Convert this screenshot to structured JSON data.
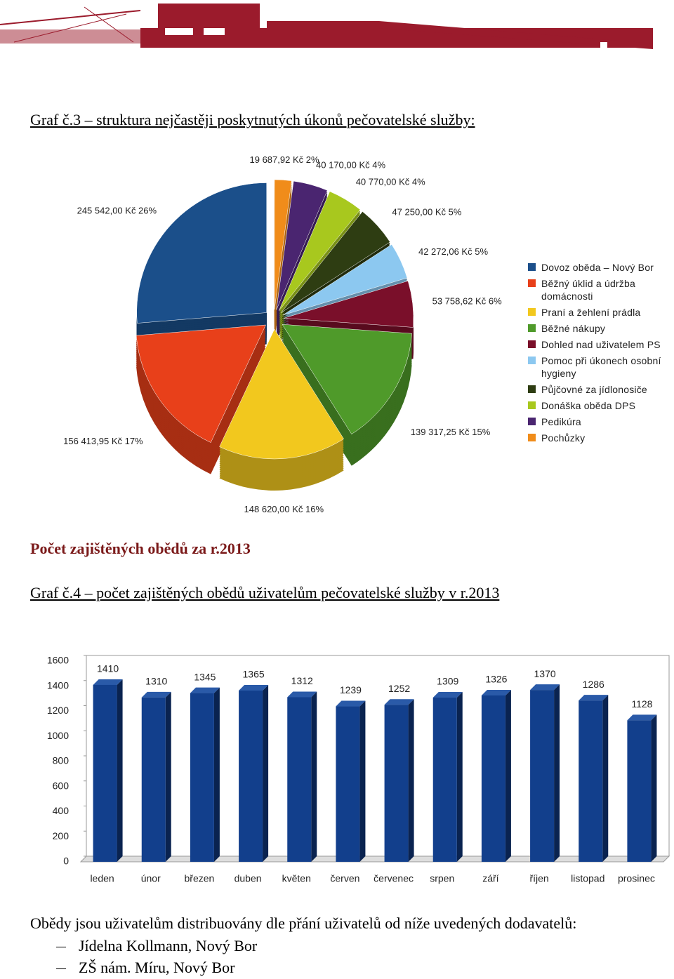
{
  "document": {
    "graph3_caption": "Graf č.3 – struktura nejčastěji poskytnutých  úkonů pečovatelské služby:",
    "section_heading": "Počet zajištěných obědů za r.2013",
    "graph4_caption": "Graf č.4 – počet zajištěných obědů uživatelům pečovatelské služby v r.2013",
    "paragraph": "Obědy jsou uživatelům distribuovány dle  přání uživatelů od níže uvedených dodavatelů:",
    "list": [
      "Jídelna Kollmann, Nový Bor",
      "ZŠ nám. Míru, Nový Bor"
    ]
  },
  "chart_data": [
    {
      "type": "pie",
      "categories": [
        "Dovoz oběda – Nový Bor",
        "Běžný úklid a údržba domácnosti",
        "Praní a žehlení prádla",
        "Běžné nákupy",
        "Dohled nad uživatelem PS",
        "Pomoc při úkonech osobní hygieny",
        "Půjčovné za jídlonosiče",
        "Donáška oběda DPS",
        "Pedikúra",
        "Pochůzky"
      ],
      "values": [
        245542.0,
        156413.95,
        148620.0,
        139317.25,
        53758.62,
        42272.06,
        47250.0,
        40770.0,
        40170.0,
        19687.92
      ],
      "value_labels": [
        "245 542,00 Kč 26%",
        "156 413,95 Kč 17%",
        "148 620,00 Kč 16%",
        "139 317,25 Kč 15%",
        "53 758,62 Kč 6%",
        "42 272,06 Kč 5%",
        "47 250,00 Kč 5%",
        "40 770,00 Kč 4%",
        "40 170,00 Kč 4%",
        "19 687,92 Kč 2%"
      ],
      "colors": [
        "#1b4f8a",
        "#e8401a",
        "#f2c81e",
        "#4f9a2a",
        "#7a0f2a",
        "#8cc8f0",
        "#2e3d12",
        "#a8c81e",
        "#4a2570",
        "#f08c1a"
      ]
    },
    {
      "type": "bar",
      "categories": [
        "leden",
        "únor",
        "březen",
        "duben",
        "květen",
        "červen",
        "červenec",
        "srpen",
        "září",
        "říjen",
        "listopad",
        "prosinec"
      ],
      "values": [
        1410,
        1310,
        1345,
        1365,
        1312,
        1239,
        1252,
        1309,
        1326,
        1370,
        1286,
        1128
      ],
      "color": "#123f8c",
      "ylim": [
        0,
        1600
      ],
      "yticks": [
        0,
        200,
        400,
        600,
        800,
        1000,
        1200,
        1400,
        1600
      ],
      "grid": false
    }
  ]
}
